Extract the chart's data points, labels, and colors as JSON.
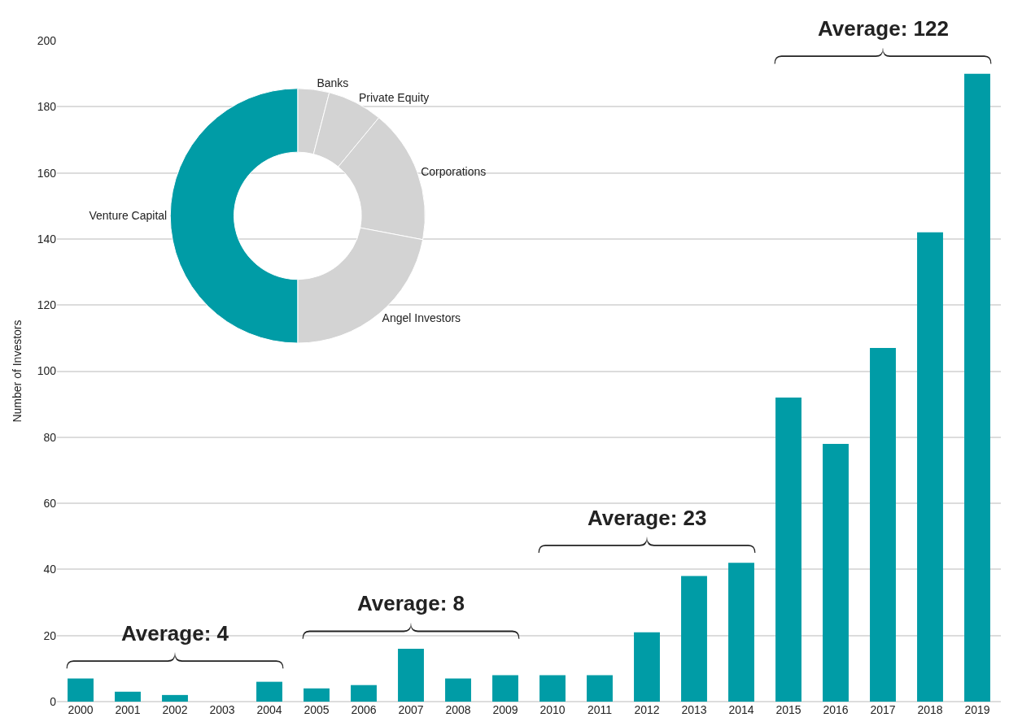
{
  "chart_data": [
    {
      "type": "bar",
      "ylabel": "Number of Investors",
      "categories": [
        "2000",
        "2001",
        "2002",
        "2003",
        "2004",
        "2005",
        "2006",
        "2007",
        "2008",
        "2009",
        "2010",
        "2011",
        "2012",
        "2013",
        "2014",
        "2015",
        "2016",
        "2017",
        "2018",
        "2019"
      ],
      "values": [
        7,
        3,
        2,
        0,
        6,
        4,
        5,
        16,
        7,
        8,
        8,
        8,
        21,
        38,
        42,
        92,
        78,
        107,
        142,
        190
      ],
      "color": "#009ca6",
      "ylim": [
        0,
        200
      ],
      "yticks": [
        0,
        20,
        40,
        60,
        80,
        100,
        120,
        140,
        160,
        180,
        200
      ],
      "grid": "y",
      "annotations": [
        "Average: 4",
        "Average: 8",
        "Average: 23",
        "Average: 122"
      ]
    },
    {
      "type": "donut",
      "categories": [
        "Banks",
        "Private Equity",
        "Corporations",
        "Angel Investors",
        "Venture Capital"
      ],
      "values": [
        4,
        7,
        17,
        22,
        50
      ],
      "colors": [
        "#d3d3d3",
        "#d3d3d3",
        "#d3d3d3",
        "#d3d3d3",
        "#009ca6"
      ]
    }
  ]
}
